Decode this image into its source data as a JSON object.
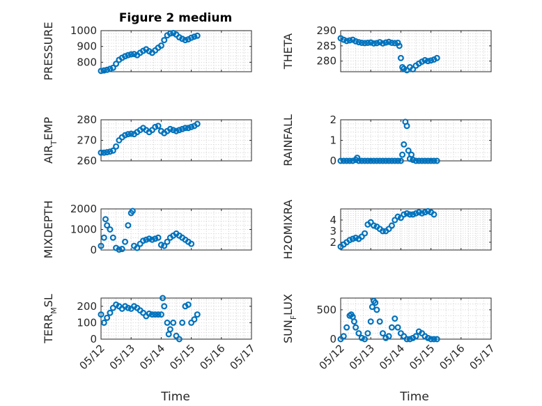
{
  "figure": {
    "title": "Figure 2 medium",
    "marker_color": "#0072BD",
    "x_tick_labels": [
      "05/12",
      "05/13",
      "05/14",
      "05/15",
      "05/16",
      "05/17"
    ],
    "x_label": "Time"
  },
  "chart_data": [
    {
      "id": "pressure",
      "type": "scatter",
      "ylabel": "PRESSURE",
      "ylim": [
        740,
        1000
      ],
      "yticks": [
        800,
        900,
        1000
      ],
      "xlim": [
        0,
        5
      ],
      "grid": true,
      "show_xticklabels": false,
      "points": [
        [
          0,
          745
        ],
        [
          0.1,
          748
        ],
        [
          0.2,
          752
        ],
        [
          0.3,
          758
        ],
        [
          0.4,
          765
        ],
        [
          0.5,
          790
        ],
        [
          0.6,
          815
        ],
        [
          0.7,
          828
        ],
        [
          0.8,
          838
        ],
        [
          0.9,
          845
        ],
        [
          1.0,
          850
        ],
        [
          1.1,
          852
        ],
        [
          1.2,
          845
        ],
        [
          1.3,
          860
        ],
        [
          1.4,
          872
        ],
        [
          1.5,
          882
        ],
        [
          1.6,
          870
        ],
        [
          1.7,
          860
        ],
        [
          1.8,
          875
        ],
        [
          1.9,
          892
        ],
        [
          2.0,
          905
        ],
        [
          2.1,
          940
        ],
        [
          2.2,
          970
        ],
        [
          2.3,
          982
        ],
        [
          2.4,
          985
        ],
        [
          2.5,
          975
        ],
        [
          2.6,
          958
        ],
        [
          2.7,
          948
        ],
        [
          2.8,
          940
        ],
        [
          2.9,
          945
        ],
        [
          3.0,
          955
        ],
        [
          3.1,
          962
        ],
        [
          3.2,
          968
        ]
      ]
    },
    {
      "id": "theta",
      "type": "scatter",
      "ylabel": "THETA",
      "ylim": [
        276.5,
        290
      ],
      "yticks": [
        280,
        285,
        290
      ],
      "xlim": [
        0,
        5
      ],
      "grid": true,
      "show_xticklabels": false,
      "points": [
        [
          0,
          287.5
        ],
        [
          0.1,
          287.0
        ],
        [
          0.2,
          286.6
        ],
        [
          0.3,
          286.8
        ],
        [
          0.4,
          287.0
        ],
        [
          0.5,
          286.5
        ],
        [
          0.6,
          286.2
        ],
        [
          0.7,
          286.0
        ],
        [
          0.8,
          285.9
        ],
        [
          0.9,
          286.0
        ],
        [
          1.0,
          286.1
        ],
        [
          1.1,
          285.8
        ],
        [
          1.2,
          285.9
        ],
        [
          1.3,
          286.2
        ],
        [
          1.4,
          285.8
        ],
        [
          1.5,
          286.1
        ],
        [
          1.6,
          286.3
        ],
        [
          1.7,
          286.0
        ],
        [
          1.8,
          285.9
        ],
        [
          1.9,
          286.0
        ],
        [
          1.95,
          285.0
        ],
        [
          2.0,
          281.0
        ],
        [
          2.05,
          278.0
        ],
        [
          2.1,
          277.5
        ],
        [
          2.2,
          277.0
        ],
        [
          2.3,
          278.0
        ],
        [
          2.4,
          277.3
        ],
        [
          2.5,
          278.5
        ],
        [
          2.6,
          279.2
        ],
        [
          2.7,
          279.8
        ],
        [
          2.8,
          280.3
        ],
        [
          2.9,
          280.0
        ],
        [
          3.0,
          280.2
        ],
        [
          3.1,
          280.5
        ],
        [
          3.2,
          281.0
        ]
      ]
    },
    {
      "id": "air_temp",
      "type": "scatter",
      "ylabel": [
        "AIR",
        "T",
        "EMP"
      ],
      "ylim": [
        260,
        280
      ],
      "yticks": [
        260,
        270,
        280
      ],
      "xlim": [
        0,
        5
      ],
      "grid": true,
      "show_xticklabels": false,
      "points": [
        [
          0,
          264.0
        ],
        [
          0.1,
          264.0
        ],
        [
          0.2,
          264.2
        ],
        [
          0.3,
          264.5
        ],
        [
          0.4,
          265.0
        ],
        [
          0.5,
          267.0
        ],
        [
          0.6,
          270.0
        ],
        [
          0.7,
          271.5
        ],
        [
          0.8,
          272.5
        ],
        [
          0.9,
          273.0
        ],
        [
          1.0,
          273.2
        ],
        [
          1.1,
          273.0
        ],
        [
          1.2,
          274.0
        ],
        [
          1.3,
          275.0
        ],
        [
          1.4,
          276.0
        ],
        [
          1.5,
          275.0
        ],
        [
          1.6,
          274.0
        ],
        [
          1.7,
          275.0
        ],
        [
          1.8,
          276.5
        ],
        [
          1.9,
          277.0
        ],
        [
          2.0,
          274.5
        ],
        [
          2.1,
          273.5
        ],
        [
          2.2,
          274.5
        ],
        [
          2.3,
          275.5
        ],
        [
          2.4,
          275.0
        ],
        [
          2.5,
          274.5
        ],
        [
          2.6,
          275.0
        ],
        [
          2.7,
          275.5
        ],
        [
          2.8,
          276.0
        ],
        [
          2.9,
          276.0
        ],
        [
          3.0,
          276.5
        ],
        [
          3.1,
          277.0
        ],
        [
          3.2,
          278.0
        ]
      ]
    },
    {
      "id": "rainfall",
      "type": "scatter",
      "ylabel": "RAINFALL",
      "ylim": [
        0,
        2
      ],
      "yticks": [
        0,
        1,
        2
      ],
      "xlim": [
        0,
        5
      ],
      "grid": true,
      "show_xticklabels": false,
      "points": [
        [
          0,
          0
        ],
        [
          0.1,
          0
        ],
        [
          0.2,
          0
        ],
        [
          0.3,
          0
        ],
        [
          0.4,
          0
        ],
        [
          0.5,
          0.05
        ],
        [
          0.55,
          0.15
        ],
        [
          0.6,
          0
        ],
        [
          0.7,
          0
        ],
        [
          0.8,
          0
        ],
        [
          0.9,
          0
        ],
        [
          1.0,
          0
        ],
        [
          1.1,
          0
        ],
        [
          1.2,
          0
        ],
        [
          1.3,
          0
        ],
        [
          1.4,
          0
        ],
        [
          1.5,
          0
        ],
        [
          1.6,
          0
        ],
        [
          1.7,
          0
        ],
        [
          1.8,
          0
        ],
        [
          1.9,
          0
        ],
        [
          2.0,
          0
        ],
        [
          2.05,
          0.3
        ],
        [
          2.1,
          0.8
        ],
        [
          2.15,
          1.9
        ],
        [
          2.2,
          1.7
        ],
        [
          2.25,
          0.5
        ],
        [
          2.3,
          0.1
        ],
        [
          2.35,
          0.3
        ],
        [
          2.4,
          0.05
        ],
        [
          2.5,
          0
        ],
        [
          2.6,
          0
        ],
        [
          2.7,
          0
        ],
        [
          2.8,
          0
        ],
        [
          2.9,
          0
        ],
        [
          3.0,
          0
        ],
        [
          3.1,
          0
        ],
        [
          3.2,
          0
        ]
      ]
    },
    {
      "id": "mixdepth",
      "type": "scatter",
      "ylabel": "MIXDEPTH",
      "ylim": [
        0,
        2000
      ],
      "yticks": [
        0,
        1000,
        2000
      ],
      "xlim": [
        0,
        5
      ],
      "grid": true,
      "show_xticklabels": false,
      "points": [
        [
          0,
          200
        ],
        [
          0.1,
          600
        ],
        [
          0.15,
          1500
        ],
        [
          0.2,
          1200
        ],
        [
          0.3,
          1000
        ],
        [
          0.4,
          600
        ],
        [
          0.5,
          100
        ],
        [
          0.6,
          20
        ],
        [
          0.7,
          50
        ],
        [
          0.8,
          400
        ],
        [
          0.9,
          1200
        ],
        [
          1.0,
          1800
        ],
        [
          1.05,
          1900
        ],
        [
          1.1,
          200
        ],
        [
          1.2,
          100
        ],
        [
          1.3,
          300
        ],
        [
          1.4,
          450
        ],
        [
          1.5,
          500
        ],
        [
          1.6,
          550
        ],
        [
          1.7,
          500
        ],
        [
          1.8,
          550
        ],
        [
          1.9,
          600
        ],
        [
          2.0,
          250
        ],
        [
          2.1,
          200
        ],
        [
          2.2,
          400
        ],
        [
          2.3,
          600
        ],
        [
          2.4,
          700
        ],
        [
          2.5,
          800
        ],
        [
          2.6,
          700
        ],
        [
          2.7,
          600
        ],
        [
          2.8,
          500
        ],
        [
          2.9,
          400
        ],
        [
          3.0,
          300
        ]
      ]
    },
    {
      "id": "h2omixra",
      "type": "scatter",
      "ylabel": "H2OMIXRA",
      "ylim": [
        1.3,
        5
      ],
      "yticks": [
        2,
        3,
        4
      ],
      "xlim": [
        0,
        5
      ],
      "grid": true,
      "show_xticklabels": false,
      "points": [
        [
          0,
          1.6
        ],
        [
          0.1,
          1.8
        ],
        [
          0.2,
          2.0
        ],
        [
          0.3,
          2.2
        ],
        [
          0.4,
          2.3
        ],
        [
          0.5,
          2.4
        ],
        [
          0.6,
          2.3
        ],
        [
          0.7,
          2.5
        ],
        [
          0.8,
          2.8
        ],
        [
          0.9,
          3.6
        ],
        [
          1.0,
          3.8
        ],
        [
          1.1,
          3.5
        ],
        [
          1.2,
          3.4
        ],
        [
          1.3,
          3.2
        ],
        [
          1.4,
          3.0
        ],
        [
          1.5,
          3.0
        ],
        [
          1.6,
          3.2
        ],
        [
          1.7,
          3.5
        ],
        [
          1.8,
          4.0
        ],
        [
          1.9,
          4.3
        ],
        [
          2.0,
          4.2
        ],
        [
          2.1,
          4.5
        ],
        [
          2.2,
          4.6
        ],
        [
          2.3,
          4.5
        ],
        [
          2.4,
          4.5
        ],
        [
          2.5,
          4.6
        ],
        [
          2.6,
          4.7
        ],
        [
          2.7,
          4.6
        ],
        [
          2.8,
          4.7
        ],
        [
          2.9,
          4.8
        ],
        [
          3.0,
          4.7
        ],
        [
          3.1,
          4.5
        ]
      ]
    },
    {
      "id": "terr_msl",
      "type": "scatter",
      "ylabel": [
        "TERR",
        "M",
        "SL"
      ],
      "ylim": [
        0,
        250
      ],
      "yticks": [
        0,
        100,
        200
      ],
      "xlim": [
        0,
        5
      ],
      "grid": true,
      "show_xticklabels": true,
      "points": [
        [
          0,
          150
        ],
        [
          0.1,
          100
        ],
        [
          0.2,
          130
        ],
        [
          0.3,
          160
        ],
        [
          0.4,
          190
        ],
        [
          0.5,
          210
        ],
        [
          0.6,
          200
        ],
        [
          0.7,
          185
        ],
        [
          0.8,
          200
        ],
        [
          0.9,
          190
        ],
        [
          1.0,
          185
        ],
        [
          1.1,
          200
        ],
        [
          1.2,
          190
        ],
        [
          1.3,
          175
        ],
        [
          1.4,
          160
        ],
        [
          1.5,
          140
        ],
        [
          1.6,
          155
        ],
        [
          1.7,
          150
        ],
        [
          1.8,
          150
        ],
        [
          1.9,
          150
        ],
        [
          2.0,
          150
        ],
        [
          2.05,
          250
        ],
        [
          2.1,
          200
        ],
        [
          2.2,
          100
        ],
        [
          2.25,
          30
        ],
        [
          2.3,
          60
        ],
        [
          2.4,
          100
        ],
        [
          2.5,
          20
        ],
        [
          2.6,
          0
        ],
        [
          2.7,
          100
        ],
        [
          2.8,
          200
        ],
        [
          2.9,
          210
        ],
        [
          3.0,
          100
        ],
        [
          3.1,
          120
        ],
        [
          3.2,
          150
        ]
      ]
    },
    {
      "id": "sun_flux",
      "type": "scatter",
      "ylabel": [
        "SUN",
        "F",
        "LUX"
      ],
      "ylim": [
        0,
        700
      ],
      "yticks": [
        0,
        500
      ],
      "xlim": [
        0,
        5
      ],
      "grid": true,
      "show_xticklabels": true,
      "points": [
        [
          0,
          0
        ],
        [
          0.1,
          50
        ],
        [
          0.2,
          200
        ],
        [
          0.3,
          400
        ],
        [
          0.35,
          420
        ],
        [
          0.4,
          380
        ],
        [
          0.45,
          300
        ],
        [
          0.5,
          200
        ],
        [
          0.6,
          100
        ],
        [
          0.7,
          20
        ],
        [
          0.8,
          0
        ],
        [
          0.9,
          100
        ],
        [
          1.0,
          300
        ],
        [
          1.05,
          550
        ],
        [
          1.1,
          650
        ],
        [
          1.15,
          620
        ],
        [
          1.2,
          500
        ],
        [
          1.3,
          300
        ],
        [
          1.4,
          100
        ],
        [
          1.5,
          20
        ],
        [
          1.6,
          50
        ],
        [
          1.7,
          200
        ],
        [
          1.8,
          350
        ],
        [
          1.9,
          200
        ],
        [
          2.0,
          100
        ],
        [
          2.1,
          50
        ],
        [
          2.2,
          0
        ],
        [
          2.3,
          0
        ],
        [
          2.4,
          20
        ],
        [
          2.5,
          50
        ],
        [
          2.6,
          130
        ],
        [
          2.7,
          100
        ],
        [
          2.8,
          50
        ],
        [
          2.9,
          20
        ],
        [
          3.0,
          0
        ],
        [
          3.1,
          0
        ],
        [
          3.2,
          0
        ]
      ]
    }
  ]
}
